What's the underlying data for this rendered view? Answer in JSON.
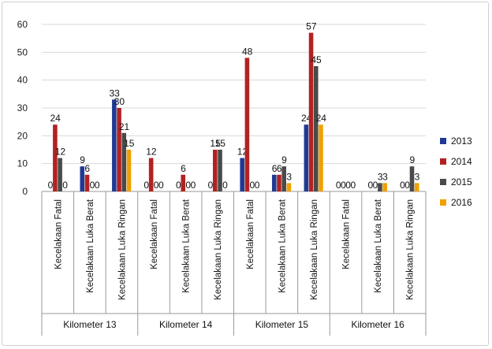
{
  "chart_data": {
    "type": "bar",
    "title": "",
    "xlabel": "",
    "ylabel": "",
    "ylim": [
      0,
      60
    ],
    "yticks": [
      0,
      10,
      20,
      30,
      40,
      50,
      60
    ],
    "grid": true,
    "legend_position": "right",
    "groups": [
      "Kilometer 13",
      "Kilometer 14",
      "Kilometer 15",
      "Kilometer 16"
    ],
    "subcategories": [
      "Kecelakaan Fatal",
      "Kecelakaan Luka Berat",
      "Kecelakaan Luka Ringan"
    ],
    "categories": [
      "Kilometer 13 - Kecelakaan Fatal",
      "Kilometer 13 - Kecelakaan Luka Berat",
      "Kilometer 13 - Kecelakaan Luka Ringan",
      "Kilometer 14 - Kecelakaan Fatal",
      "Kilometer 14 - Kecelakaan Luka Berat",
      "Kilometer 14 - Kecelakaan Luka Ringan",
      "Kilometer 15 - Kecelakaan Fatal",
      "Kilometer 15 - Kecelakaan Luka Berat",
      "Kilometer 15 - Kecelakaan Luka Ringan",
      "Kilometer 16 - Kecelakaan Fatal",
      "Kilometer 16 - Kecelakaan Luka Berat",
      "Kilometer 16 - Kecelakaan Luka Ringan"
    ],
    "series": [
      {
        "name": "2013",
        "color": "#1f3a93",
        "values": [
          0,
          9,
          33,
          0,
          0,
          0,
          12,
          6,
          24,
          0,
          0,
          0
        ]
      },
      {
        "name": "2014",
        "color": "#b22222",
        "values": [
          24,
          6,
          30,
          12,
          6,
          15,
          48,
          6,
          57,
          0,
          0,
          0
        ]
      },
      {
        "name": "2015",
        "color": "#4a4a4a",
        "values": [
          12,
          0,
          21,
          0,
          0,
          15,
          0,
          9,
          45,
          0,
          3,
          9
        ]
      },
      {
        "name": "2016",
        "color": "#f0a000",
        "values": [
          0,
          0,
          15,
          0,
          0,
          0,
          0,
          3,
          24,
          0,
          3,
          3
        ]
      }
    ]
  }
}
